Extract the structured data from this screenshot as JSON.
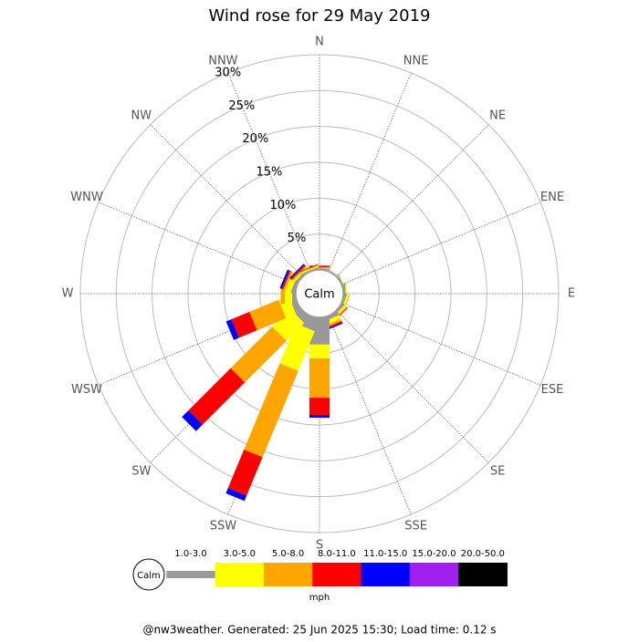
{
  "chart_data": {
    "type": "windrose",
    "title": "Wind rose for 29 May 2019",
    "categories": [
      "N",
      "NNE",
      "NE",
      "ENE",
      "E",
      "ESE",
      "SE",
      "SSE",
      "S",
      "SSW",
      "SW",
      "WSW",
      "W",
      "WNW",
      "NW",
      "NNW"
    ],
    "center_label": "Calm",
    "rlim": [
      0,
      30
    ],
    "rticks": [
      {
        "value": 5,
        "label": "5%"
      },
      {
        "value": 10,
        "label": "10%"
      },
      {
        "value": 15,
        "label": "15%"
      },
      {
        "value": 20,
        "label": "20%"
      },
      {
        "value": 25,
        "label": "25%"
      },
      {
        "value": 30,
        "label": "30%"
      }
    ],
    "series": [
      {
        "name": "1.0-3.0",
        "color": "#999999",
        "values": [
          0.2,
          0.1,
          0.1,
          0.2,
          0.3,
          0.3,
          0.3,
          0.5,
          3.8,
          1.8,
          1.1,
          0.8,
          0.5,
          0.5,
          0.3,
          0.2
        ]
      },
      {
        "name": "3.0-5.0",
        "color": "#ffff00",
        "values": [
          0.1,
          0,
          0,
          0.1,
          0.2,
          0.3,
          0.3,
          0.6,
          1.9,
          6.0,
          3.5,
          1.5,
          1.0,
          0.8,
          0.3,
          0.2
        ]
      },
      {
        "name": "5.0-8.0",
        "color": "#ffa500",
        "values": [
          0.1,
          0,
          0,
          0,
          0,
          0.1,
          0.2,
          0.3,
          5.5,
          13.0,
          8.2,
          4.4,
          0.6,
          0.3,
          0.2,
          0.1
        ]
      },
      {
        "name": "8.0-11.0",
        "color": "#ff0000",
        "values": [
          0.2,
          0,
          0,
          0,
          0,
          0,
          0.1,
          0.2,
          2.4,
          5.8,
          8.3,
          2.7,
          0,
          0.2,
          0.2,
          0.1
        ]
      },
      {
        "name": "11.0-15.0",
        "color": "#0000ff",
        "values": [
          0,
          0,
          0,
          0,
          0,
          0,
          0,
          0.2,
          0.4,
          0.8,
          1.3,
          0.8,
          0,
          0.3,
          0.2,
          0
        ]
      },
      {
        "name": "15.0-20.0",
        "color": "#a020f0",
        "values": [
          0,
          0,
          0,
          0,
          0,
          0,
          0,
          0,
          0,
          0,
          0,
          0,
          0,
          0,
          0,
          0
        ]
      },
      {
        "name": "20.0-50.0",
        "color": "#000000",
        "values": [
          0,
          0,
          0,
          0,
          0,
          0,
          0,
          0,
          0,
          0,
          0,
          0,
          0,
          0,
          0,
          0
        ]
      }
    ],
    "legend_unit": "mph",
    "footer": "@nw3weather. Generated: 25 Jun 2025 15:30; Load time: 0.12 s"
  }
}
